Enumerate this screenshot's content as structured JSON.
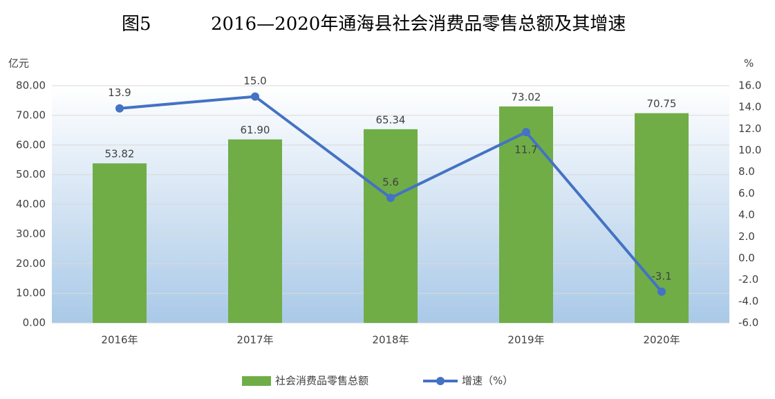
{
  "chart_data": {
    "type": "bar",
    "figure_label": "图5",
    "title": "2016—2020年通海县社会消费品零售总额及其增速",
    "y_label": "亿元",
    "y2_label": "%",
    "categories": [
      "2016年",
      "2017年",
      "2018年",
      "2019年",
      "2020年"
    ],
    "series": [
      {
        "name": "社会消费品零售总额",
        "type": "bar",
        "color": "#70ad47",
        "values": [
          53.82,
          61.9,
          65.34,
          73.02,
          70.75
        ],
        "value_labels": [
          "53.82",
          "61.90",
          "65.34",
          "73.02",
          "70.75"
        ]
      },
      {
        "name": "增速（%）",
        "type": "line",
        "axis": "y2",
        "color": "#4472c4",
        "values": [
          13.9,
          15.0,
          5.6,
          11.7,
          -3.1
        ],
        "value_labels": [
          "13.9",
          "15.0",
          "5.6",
          "11.7",
          "-3.1"
        ]
      }
    ],
    "ylim": [
      0,
      80
    ],
    "yticks": [
      {
        "value": 0,
        "label": "0.00"
      },
      {
        "value": 10,
        "label": "10.00"
      },
      {
        "value": 20,
        "label": "20.00"
      },
      {
        "value": 30,
        "label": "30.00"
      },
      {
        "value": 40,
        "label": "40.00"
      },
      {
        "value": 50,
        "label": "50.00"
      },
      {
        "value": 60,
        "label": "60.00"
      },
      {
        "value": 70,
        "label": "70.00"
      },
      {
        "value": 80,
        "label": "80.00"
      }
    ],
    "y2lim": [
      -6,
      16
    ],
    "y2ticks": [
      {
        "value": -6,
        "label": "-6.0"
      },
      {
        "value": -4,
        "label": "-4.0"
      },
      {
        "value": -2,
        "label": "-2.0"
      },
      {
        "value": 0,
        "label": "0.0"
      },
      {
        "value": 2,
        "label": "2.0"
      },
      {
        "value": 4,
        "label": "4.0"
      },
      {
        "value": 6,
        "label": "6.0"
      },
      {
        "value": 8,
        "label": "8.0"
      },
      {
        "value": 10,
        "label": "10.0"
      },
      {
        "value": 12,
        "label": "12.0"
      },
      {
        "value": 14,
        "label": "14.0"
      },
      {
        "value": 16,
        "label": "16.0"
      }
    ],
    "grid": true,
    "legend": "bottom"
  }
}
